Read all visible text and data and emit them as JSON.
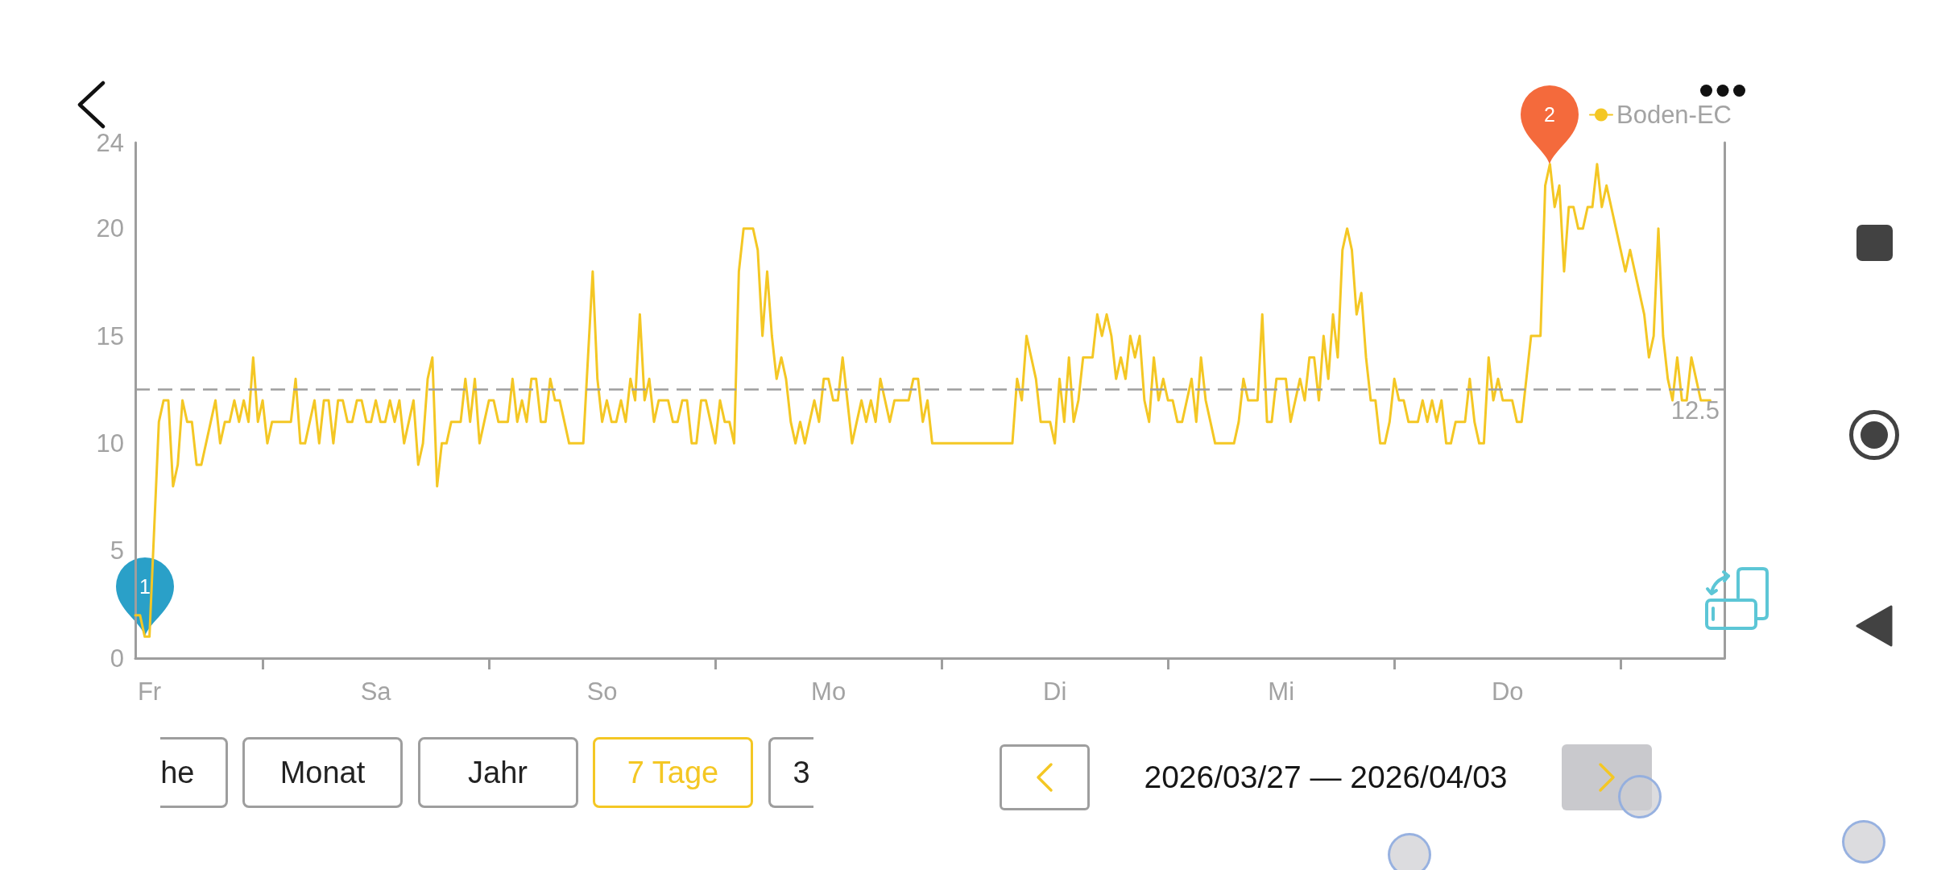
{
  "chart_data": {
    "type": "line",
    "categories": [
      null,
      null,
      null,
      "Fr",
      null,
      null,
      null,
      null,
      null,
      null,
      null,
      null,
      null,
      null,
      null,
      null,
      null,
      null,
      null,
      null,
      null,
      null,
      null,
      null,
      null,
      null,
      null,
      null,
      null,
      null,
      null,
      null,
      null,
      null,
      null,
      null,
      null,
      null,
      null,
      null,
      null,
      null,
      null,
      null,
      null,
      null,
      null,
      null,
      null,
      null,
      null,
      "Sa",
      null,
      null,
      null,
      null,
      null,
      null,
      null,
      null,
      null,
      null,
      null,
      null,
      null,
      null,
      null,
      null,
      null,
      null,
      null,
      null,
      null,
      null,
      null,
      null,
      null,
      null,
      null,
      null,
      null,
      null,
      null,
      null,
      null,
      null,
      null,
      null,
      null,
      null,
      null,
      null,
      null,
      null,
      null,
      null,
      null,
      null,
      null,
      "So",
      null,
      null,
      null,
      null,
      null,
      null,
      null,
      null,
      null,
      null,
      null,
      null,
      null,
      null,
      null,
      null,
      null,
      null,
      null,
      null,
      null,
      null,
      null,
      null,
      null,
      null,
      null,
      null,
      null,
      null,
      null,
      null,
      null,
      null,
      null,
      null,
      null,
      null,
      null,
      null,
      null,
      null,
      null,
      null,
      null,
      null,
      null,
      "Mo",
      null,
      null,
      null,
      null,
      null,
      null,
      null,
      null,
      null,
      null,
      null,
      null,
      null,
      null,
      null,
      null,
      null,
      null,
      null,
      null,
      null,
      null,
      null,
      null,
      null,
      null,
      null,
      null,
      null,
      null,
      null,
      null,
      null,
      null,
      null,
      null,
      null,
      null,
      null,
      null,
      null,
      null,
      null,
      null,
      null,
      null,
      null,
      "Di",
      null,
      null,
      null,
      null,
      null,
      null,
      null,
      null,
      null,
      null,
      null,
      null,
      null,
      null,
      null,
      null,
      null,
      null,
      null,
      null,
      null,
      null,
      null,
      null,
      null,
      null,
      null,
      null,
      null,
      null,
      null,
      null,
      null,
      null,
      null,
      null,
      null,
      null,
      null,
      null,
      null,
      null,
      null,
      null,
      null,
      null,
      null,
      "Mi",
      null,
      null,
      null,
      null,
      null,
      null,
      null,
      null,
      null,
      null,
      null,
      null,
      null,
      null,
      null,
      null,
      null,
      null,
      null,
      null,
      null,
      null,
      null,
      null,
      null,
      null,
      null,
      null,
      null,
      null,
      null,
      null,
      null,
      null,
      null,
      null,
      null,
      null,
      null,
      null,
      null,
      null,
      null,
      null,
      null,
      null,
      null,
      "Do",
      null,
      null,
      null,
      null,
      null,
      null,
      null,
      null,
      null,
      null,
      null,
      null,
      null,
      null,
      null,
      null,
      null,
      null,
      null,
      null,
      null,
      null,
      null,
      null,
      null,
      null,
      null,
      null,
      null,
      null,
      null,
      null,
      null,
      null,
      null,
      null,
      null,
      null,
      null,
      null,
      null,
      null,
      null,
      null,
      null,
      null
    ],
    "ylim": [
      0,
      24
    ],
    "yticks": [
      0,
      5,
      10,
      15,
      20,
      24
    ],
    "series": [
      {
        "name": "Boden-EC",
        "color": "#f4c724",
        "values": [
          2,
          2,
          1,
          1,
          6,
          11,
          12,
          12,
          8,
          9,
          12,
          11,
          11,
          9,
          9,
          10,
          11,
          12,
          10,
          11,
          11,
          12,
          11,
          12,
          11,
          14,
          11,
          12,
          10,
          11,
          11,
          11,
          11,
          11,
          13,
          10,
          10,
          11,
          12,
          10,
          12,
          12,
          10,
          12,
          12,
          11,
          11,
          12,
          12,
          11,
          11,
          12,
          11,
          11,
          12,
          11,
          12,
          10,
          11,
          12,
          9,
          10,
          13,
          14,
          8,
          10,
          10,
          11,
          11,
          11,
          13,
          11,
          13,
          10,
          11,
          12,
          12,
          11,
          11,
          11,
          13,
          11,
          12,
          11,
          13,
          13,
          11,
          11,
          13,
          12,
          12,
          11,
          10,
          10,
          10,
          10,
          14,
          18,
          13,
          11,
          12,
          11,
          11,
          12,
          11,
          13,
          12,
          16,
          12,
          13,
          11,
          12,
          12,
          12,
          11,
          11,
          12,
          12,
          10,
          10,
          12,
          12,
          11,
          10,
          12,
          11,
          11,
          10,
          18,
          20,
          20,
          20,
          19,
          15,
          18,
          15,
          13,
          14,
          13,
          11,
          10,
          11,
          10,
          11,
          12,
          11,
          13,
          13,
          12,
          12,
          14,
          12,
          10,
          11,
          12,
          11,
          12,
          11,
          13,
          12,
          11,
          12,
          12,
          12,
          12,
          13,
          13,
          11,
          12,
          10,
          10,
          10,
          10,
          10,
          10,
          10,
          10,
          10,
          10,
          10,
          10,
          10,
          10,
          10,
          10,
          10,
          10,
          13,
          12,
          15,
          14,
          13,
          11,
          11,
          11,
          10,
          13,
          11,
          14,
          11,
          12,
          14,
          14,
          14,
          16,
          15,
          16,
          15,
          13,
          14,
          13,
          15,
          14,
          15,
          12,
          11,
          14,
          12,
          13,
          12,
          12,
          11,
          11,
          12,
          13,
          11,
          14,
          12,
          11,
          10,
          10,
          10,
          10,
          10,
          11,
          13,
          12,
          12,
          12,
          16,
          11,
          11,
          13,
          13,
          13,
          11,
          12,
          13,
          12,
          14,
          14,
          12,
          15,
          13,
          16,
          14,
          19,
          20,
          19,
          16,
          17,
          14,
          12,
          12,
          10,
          10,
          11,
          13,
          12,
          12,
          11,
          11,
          11,
          12,
          11,
          12,
          11,
          12,
          10,
          10,
          11,
          11,
          11,
          13,
          11,
          10,
          10,
          14,
          12,
          13,
          12,
          12,
          12,
          11,
          11,
          13,
          15,
          15,
          15,
          22,
          23,
          21,
          22,
          18,
          21,
          21,
          20,
          20,
          21,
          21,
          23,
          21,
          22,
          21,
          20,
          19,
          18,
          19,
          18,
          17,
          16,
          14,
          15,
          20,
          15,
          13,
          12,
          14,
          12,
          12,
          14,
          13,
          12,
          12,
          12,
          null,
          null,
          null
        ]
      }
    ],
    "ref_lines": [
      {
        "axis": "y",
        "value": 12.5,
        "label": "12.5",
        "color": "#9e9e9e",
        "line_style": "dashed"
      }
    ],
    "annotations": [
      "1",
      "2",
      "he",
      "Monat",
      "Jahr",
      "7 Tage",
      "3",
      "2026/03/27 — 2026/04/03"
    ],
    "legend": "top right",
    "grid": false,
    "marker": "none",
    "line_style": "solid"
  }
}
